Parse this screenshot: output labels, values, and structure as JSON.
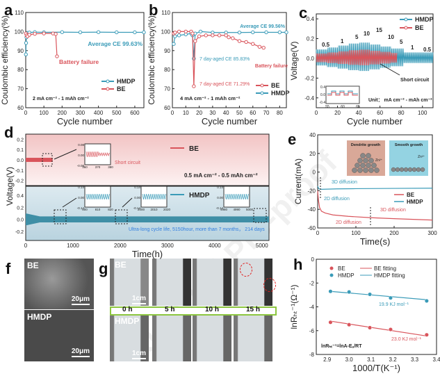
{
  "watermark": "Journal Pre-proof",
  "colors": {
    "be": "#d9545b",
    "hmdp": "#3a9bb8",
    "axis": "#222"
  },
  "chart_data": [
    {
      "panel": "a",
      "type": "scatter",
      "xlabel": "Cycle number",
      "ylabel": "Coulombic efficiency(%)",
      "xlim": [
        0,
        650
      ],
      "ylim": [
        60,
        110
      ],
      "xticks": [
        0,
        100,
        200,
        300,
        400,
        500,
        600
      ],
      "yticks": [
        60,
        70,
        80,
        90,
        100,
        110
      ],
      "series": [
        {
          "name": "HMDP",
          "x": [
            1,
            2,
            4,
            6,
            10,
            20,
            50,
            100,
            200,
            300,
            400,
            500,
            600,
            650
          ],
          "y": [
            88,
            94,
            97,
            98.5,
            99.3,
            99.5,
            99.7,
            99.6,
            99.7,
            99.6,
            99.7,
            99.6,
            99.6,
            99.6
          ]
        },
        {
          "name": "BE",
          "x": [
            1,
            5,
            10,
            20,
            50,
            100,
            150,
            165,
            172
          ],
          "y": [
            99,
            98,
            97.5,
            98.3,
            98.8,
            99,
            99,
            98.7,
            87
          ]
        }
      ],
      "annotations": [
        "Average CE 99.63%",
        "Battery failure",
        "2 mA cm⁻² - 1 mAh cm⁻²"
      ],
      "legend": "bottom-right"
    },
    {
      "panel": "b",
      "type": "scatter",
      "xlabel": "Cycle number",
      "ylabel": "Coulombic efficiency(%)",
      "xlim": [
        0,
        85
      ],
      "ylim": [
        60,
        110
      ],
      "xticks": [
        0,
        10,
        20,
        30,
        40,
        50,
        60,
        70,
        80
      ],
      "yticks": [
        60,
        70,
        80,
        90,
        100,
        110
      ],
      "series": [
        {
          "name": "BE",
          "x": [
            1,
            2,
            5,
            10,
            14,
            15,
            16,
            17,
            20,
            25,
            30,
            35,
            40,
            42,
            45,
            50,
            55,
            60,
            65,
            68
          ],
          "y": [
            99,
            99.5,
            100,
            100,
            100,
            99,
            71.29,
            95,
            97.5,
            98,
            98,
            98,
            98,
            97,
            96.5,
            95,
            94.5,
            93.5,
            92,
            91.5
          ]
        },
        {
          "name": "HMDP",
          "x": [
            1,
            2,
            5,
            10,
            14,
            15,
            16,
            17,
            21,
            30,
            40,
            50,
            60,
            70,
            80,
            85
          ],
          "y": [
            93.5,
            97.5,
            98,
            98.5,
            99,
            98,
            85.83,
            99,
            100,
            99.5,
            99.5,
            99.5,
            99.6,
            99.6,
            99.6,
            99.6
          ]
        }
      ],
      "annotations": [
        "Average CE 99.56%",
        "7 day-aged CE 85.83%",
        "7 day-aged CE 71.29%",
        "Battery failure",
        "4 mA cm⁻² - 1 mAh cm⁻²"
      ],
      "legend": "bottom-right"
    },
    {
      "panel": "c",
      "type": "line",
      "xlabel": "Cycle number",
      "ylabel": "Voltage(V)",
      "xlim": [
        0,
        110
      ],
      "ylim": [
        -0.5,
        0.45
      ],
      "xticks": [
        0,
        20,
        40,
        60,
        80,
        100
      ],
      "yticks": [
        -0.4,
        -0.2,
        0.0,
        0.2,
        0.4
      ],
      "rate_labels": [
        "0.5",
        "1",
        "5",
        "10",
        "15",
        "10",
        "5",
        "1",
        "0.5"
      ],
      "rate_segments": [
        [
          0,
          10,
          0.09
        ],
        [
          10,
          20,
          0.11
        ],
        [
          20,
          30,
          0.13
        ],
        [
          30,
          40,
          0.15
        ],
        [
          40,
          50,
          0.16
        ],
        [
          50,
          60,
          0.14
        ],
        [
          60,
          70,
          0.12
        ],
        [
          70,
          82,
          0.1
        ],
        [
          82,
          110,
          0.06
        ]
      ],
      "be_end": 76,
      "series": [
        {
          "name": "HMDP"
        },
        {
          "name": "BE"
        }
      ],
      "annotations": [
        "Short circuit",
        "Unit： mA cm⁻² - mAh cm⁻²"
      ],
      "inset": {
        "xticks": [
          "55",
          "60",
          "65"
        ],
        "yticks": [
          "0.4",
          "0.0",
          "-0.4"
        ]
      },
      "legend": "top-right"
    },
    {
      "panel": "d",
      "type": "line",
      "xlabel": "Time(h)",
      "ylabel": "Voltage(V)",
      "xlim": [
        0,
        5150
      ],
      "xticks": [
        0,
        1000,
        2000,
        3000,
        4000,
        5000
      ],
      "top": {
        "ylim": [
          -0.25,
          0.25
        ],
        "yticks": [
          "0.2",
          "0.1",
          "0.0",
          "-0.1",
          "-0.2"
        ],
        "series": "BE",
        "end_time": 380,
        "amplitude": 0.02
      },
      "bottom": {
        "ylim": [
          -0.35,
          0.55
        ],
        "yticks": [
          "0.4",
          "0.2",
          "0.0",
          "-0.2"
        ],
        "series": "HMDP",
        "end_time": 5150,
        "amplitude": 0.05
      },
      "insets": [
        {
          "yticks": [
            "0.08",
            "0.00",
            "-0.08"
          ],
          "xticks": [
            "360",
            "370",
            "380"
          ]
        },
        {
          "yticks": [
            "0.14",
            "0.00",
            "-0.14"
          ],
          "xticks": [
            "800",
            "810",
            "820"
          ]
        },
        {
          "yticks": [
            "0.14",
            "0.00",
            "-0.14"
          ],
          "xticks": [
            "2000",
            "2010",
            "2020"
          ]
        },
        {
          "yticks": [
            "0.14",
            "0.00",
            "-0.14"
          ],
          "xticks": [
            "4980",
            "4990",
            "5000"
          ]
        }
      ],
      "annotations": [
        "Short circuit",
        "0.5 mA cm⁻² - 0.5 mAh cm⁻²",
        "Ultra-long cycle life, 5150hour, more than 7 months， 214 days"
      ]
    },
    {
      "panel": "e",
      "type": "line",
      "xlabel": "Time(s)",
      "ylabel": "Current(mA)",
      "xlim": [
        0,
        300
      ],
      "ylim": [
        -60,
        40
      ],
      "xticks": [
        0,
        100,
        200,
        300
      ],
      "yticks": [
        40,
        20,
        0,
        -20,
        -40,
        -60
      ],
      "series": [
        {
          "name": "BE",
          "x": [
            0,
            2,
            5,
            10,
            20,
            40,
            80,
            140,
            200,
            300
          ],
          "y": [
            -20,
            -30,
            -38,
            -42,
            -44,
            -46,
            -47.5,
            -49,
            -50,
            -51.5
          ]
        },
        {
          "name": "HMDP",
          "x": [
            0,
            3,
            10,
            50,
            100,
            200,
            300
          ],
          "y": [
            -15,
            -18,
            -18.5,
            -18,
            -17.8,
            -17.5,
            -17.3
          ]
        }
      ],
      "annotations": [
        "3D diffusion",
        "2D diffusion",
        "3D diffusion",
        "2D diffusion"
      ],
      "schematic": [
        "Dendrite growth",
        "Smooth growth",
        "Zn²⁺",
        "Zn²⁺"
      ],
      "legend": "right"
    },
    {
      "panel": "h",
      "type": "scatter",
      "xlabel": "1000/T(K⁻¹)",
      "ylabel": "lnRₕₜ⁻¹(Ω⁻¹)",
      "xlim": [
        2.85,
        3.4
      ],
      "ylim": [
        -8,
        0
      ],
      "xticks": [
        2.9,
        3.0,
        3.1,
        3.2,
        3.3,
        3.4
      ],
      "yticks": [
        0,
        -2,
        -4,
        -6,
        -8
      ],
      "series": [
        {
          "name": "BE",
          "x": [
            2.915,
            3.0,
            3.095,
            3.19,
            3.355
          ],
          "y": [
            -5.3,
            -5.5,
            -5.75,
            -5.9,
            -6.35
          ],
          "fit": [
            [
              2.915,
              -5.2
            ],
            [
              3.355,
              -6.45
            ]
          ]
        },
        {
          "name": "HMDP",
          "x": [
            2.915,
            3.0,
            3.095,
            3.19,
            3.355
          ],
          "y": [
            -2.7,
            -2.75,
            -2.95,
            -3.25,
            -3.5
          ],
          "fit": [
            [
              2.915,
              -2.7
            ],
            [
              3.355,
              -3.4
            ]
          ]
        }
      ],
      "legend_labels": [
        "BE",
        "HMDP",
        "BE fitting",
        "HMDP fitting"
      ],
      "annotations": [
        "19.9 KJ mol⁻¹",
        "23.0 KJ mol⁻¹",
        "lnRₕₜ⁻¹=lnA-Eₐ/RT"
      ],
      "legend": "top"
    }
  ],
  "labels": {
    "a": "a",
    "b": "b",
    "c": "c",
    "d": "d",
    "e": "e",
    "f": "f",
    "g": "g",
    "h": "h"
  },
  "panel_f": {
    "top": "BE",
    "bottom": "HMDP",
    "scale": "20μm"
  },
  "panel_g": {
    "top": "BE",
    "bottom": "HMDP",
    "scale": "1cm",
    "times": [
      "0 h",
      "5 h",
      "10 h",
      "15 h"
    ]
  }
}
